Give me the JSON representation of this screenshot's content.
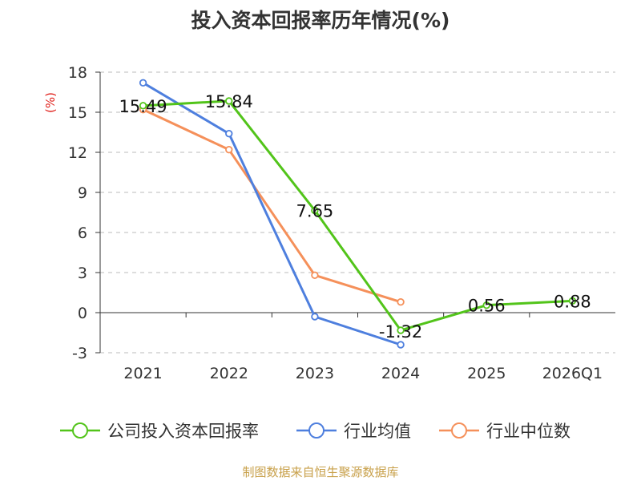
{
  "colors": {
    "company": "#52c41a",
    "industry_avg": "#4e7fde",
    "industry_median": "#f5905a",
    "unit": "#e0201b",
    "source": "#c8a04a",
    "grid": "#bbbbbb",
    "axis": "#333333"
  },
  "chart_data": {
    "type": "line",
    "title": "投入资本回报率历年情况(%)",
    "ylabel": "(%)",
    "categories": [
      "2021",
      "2022",
      "2023",
      "2024",
      "2025",
      "2026Q1"
    ],
    "ylim": [
      -3,
      18
    ],
    "yticks": [
      -3,
      0,
      3,
      6,
      9,
      12,
      15,
      18
    ],
    "ytick_labels": [
      "-3",
      "0",
      "3",
      "6",
      "9",
      "12",
      "15",
      "18"
    ],
    "grid": "horizontal dashed",
    "legend_position": "bottom",
    "series": [
      {
        "key": "company",
        "name": "公司投入资本回报率",
        "values": [
          15.49,
          15.84,
          7.65,
          -1.32,
          0.56,
          0.88
        ],
        "labels": [
          "15.49",
          "15.84",
          "7.65",
          "-1.32",
          "0.56",
          "0.88"
        ]
      },
      {
        "key": "industry_avg",
        "name": "行业均值",
        "values": [
          17.2,
          13.4,
          -0.3,
          -2.4,
          null,
          null
        ]
      },
      {
        "key": "industry_median",
        "name": "行业中位数",
        "values": [
          15.2,
          12.2,
          2.8,
          0.8,
          null,
          null
        ]
      }
    ]
  },
  "source": "制图数据来自恒生聚源数据库"
}
